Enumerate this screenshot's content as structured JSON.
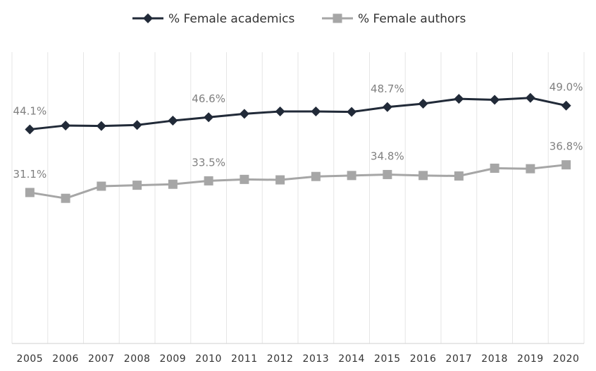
{
  "chart_data": {
    "type": "line",
    "categories": [
      "2005",
      "2006",
      "2007",
      "2008",
      "2009",
      "2010",
      "2011",
      "2012",
      "2013",
      "2014",
      "2015",
      "2016",
      "2017",
      "2018",
      "2019",
      "2020"
    ],
    "series": [
      {
        "name": "% Female academics",
        "color": "#212a38",
        "marker": "diamond",
        "values": [
          44.1,
          44.9,
          44.8,
          45.0,
          45.9,
          46.6,
          47.3,
          47.8,
          47.8,
          47.7,
          48.7,
          49.4,
          50.4,
          50.2,
          50.6,
          49.0
        ],
        "labels": {
          "0": "44.1%",
          "5": "46.6%",
          "10": "48.7%",
          "15": "49.0%"
        }
      },
      {
        "name": "% Female authors",
        "color": "#a6a6a6",
        "marker": "square",
        "values": [
          31.1,
          29.9,
          32.4,
          32.6,
          32.8,
          33.5,
          33.8,
          33.7,
          34.4,
          34.6,
          34.8,
          34.6,
          34.5,
          36.1,
          36.0,
          36.8
        ],
        "labels": {
          "0": "31.1%",
          "5": "33.5%",
          "10": "34.8%",
          "15": "36.8%"
        }
      }
    ],
    "ylim": [
      0,
      60
    ],
    "grid": "vertical",
    "legend_position": "top"
  }
}
